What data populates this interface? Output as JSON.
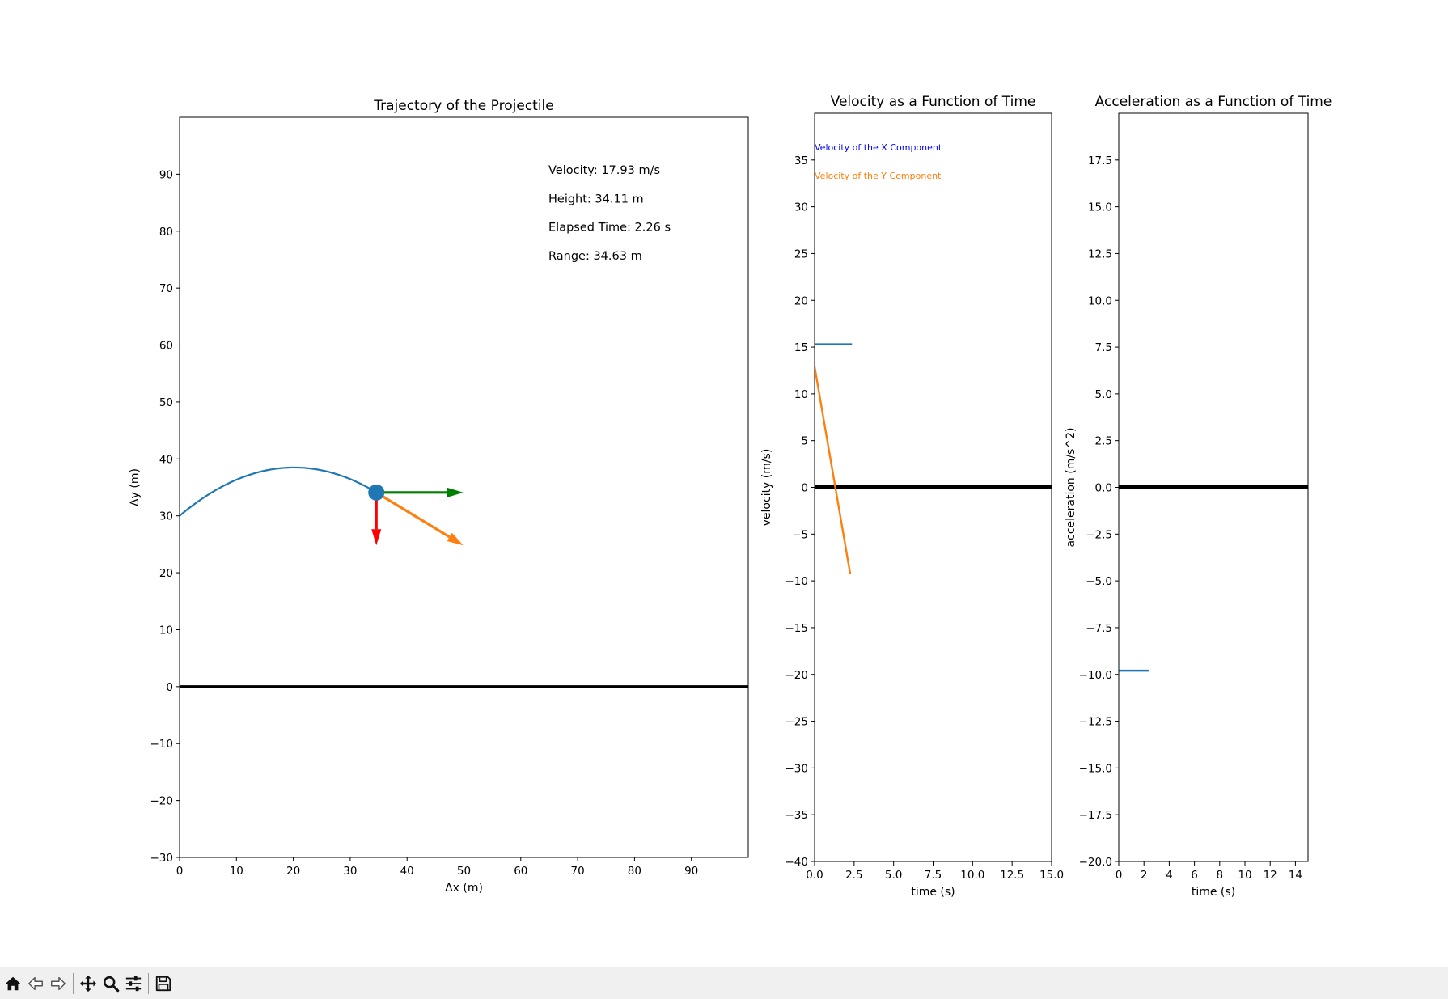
{
  "charts": [
    {
      "id": "trajectory",
      "type": "line",
      "title": "Trajectory of the Projectile",
      "xlabel": "Δx (m)",
      "ylabel": "Δy (m)",
      "xlim": [
        0,
        100
      ],
      "ylim": [
        -30,
        100
      ],
      "xticks": [
        0,
        10,
        20,
        30,
        40,
        50,
        60,
        70,
        80,
        90
      ],
      "yticks": [
        -30,
        -20,
        -10,
        0,
        10,
        20,
        30,
        40,
        50,
        60,
        70,
        80,
        90
      ],
      "ground_y": 0,
      "launch": {
        "x0": 0,
        "y0": 30,
        "vx": 15.3,
        "vy": 12.9,
        "g": 9.8,
        "t_end": 2.26
      },
      "projectile": {
        "x": 34.6,
        "y": 34.1,
        "color": "#1f77b4"
      },
      "vectors": [
        {
          "name": "vx-arrow",
          "dx": 15.3,
          "dy": 0,
          "color": "#008000"
        },
        {
          "name": "vy-arrow",
          "dx": 0,
          "dy": -9.3,
          "color": "#ff0000"
        },
        {
          "name": "v-arrow",
          "dx": 15.3,
          "dy": -9.3,
          "color": "#ff7f0e"
        }
      ],
      "info": [
        "Velocity: 17.93 m/s",
        "Height: 34.11 m",
        "Elapsed Time:  2.26 s",
        "Range:  34.63 m"
      ]
    },
    {
      "id": "velocity",
      "type": "line",
      "title": "Velocity as a Function of Time",
      "xlabel": "time (s)",
      "ylabel": "velocity (m/s)",
      "xlim": [
        0,
        15
      ],
      "ylim": [
        -40,
        40
      ],
      "xticks": [
        "0.0",
        "2.5",
        "5.0",
        "7.5",
        "10.0",
        "12.5",
        "15.0"
      ],
      "yticks": [
        -40,
        -35,
        -30,
        -25,
        -20,
        -15,
        -10,
        -5,
        0,
        5,
        10,
        15,
        20,
        25,
        30,
        35
      ],
      "zero_line": 0,
      "series": [
        {
          "name": "Velocity of the X Component",
          "color": "#1f77b4",
          "label_color": "#0000ff",
          "x": [
            0,
            2.37
          ],
          "y": [
            15.3,
            15.3
          ]
        },
        {
          "name": "Velocity of the Y Component",
          "color": "#ff7f0e",
          "label_color": "#ff7f0e",
          "x": [
            0,
            2.26
          ],
          "y": [
            12.9,
            -9.3
          ]
        }
      ]
    },
    {
      "id": "acceleration",
      "type": "line",
      "title": "Acceleration as a Function of Time",
      "xlabel": "time (s)",
      "ylabel": "acceleration (m/s^2)",
      "xlim": [
        0,
        15
      ],
      "ylim": [
        -20,
        20
      ],
      "xticks": [
        "0",
        "2",
        "4",
        "6",
        "8",
        "10",
        "12",
        "14"
      ],
      "yticks": [
        "−20.0",
        "−17.5",
        "−15.0",
        "−12.5",
        "−10.0",
        "−7.5",
        "−5.0",
        "−2.5",
        "0.0",
        "2.5",
        "5.0",
        "7.5",
        "10.0",
        "12.5",
        "15.0",
        "17.5"
      ],
      "zero_line": 0,
      "series": [
        {
          "name": "",
          "color": "#1f77b4",
          "x": [
            0,
            2.37
          ],
          "y": [
            -9.8,
            -9.8
          ]
        }
      ]
    }
  ],
  "toolbar": {
    "buttons": [
      {
        "name": "home-icon"
      },
      {
        "name": "back-arrow-icon"
      },
      {
        "name": "forward-arrow-icon"
      },
      {
        "name": "pan-icon"
      },
      {
        "name": "zoom-icon"
      },
      {
        "name": "configure-subplots-icon"
      },
      {
        "name": "save-icon"
      }
    ]
  }
}
